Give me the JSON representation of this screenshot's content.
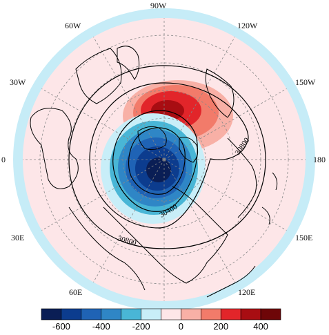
{
  "map": {
    "projection": "north polar stereographic",
    "longitude_labels": {
      "top": "90W",
      "upper_left": "60W",
      "upper_right": "120W",
      "left_upper": "30W",
      "right_upper": "150W",
      "left": "0",
      "right": "180",
      "left_lower": "30E",
      "right_lower": "150E",
      "bottom_left": "60E",
      "bottom_right": "120E"
    },
    "contour_labels": [
      "30800",
      "30400",
      "30800"
    ],
    "anomaly_features": [
      {
        "sign": "positive",
        "peak_value": 400,
        "color": "#c8141e"
      },
      {
        "sign": "negative",
        "peak_value": -600,
        "color": "#0a2b6e"
      }
    ],
    "background_color": "#fde6e8",
    "outer_ring_color": "#c6ecf7"
  },
  "colorbar": {
    "colors": [
      "#0a1e55",
      "#0c3c8e",
      "#1f63b5",
      "#2f86c6",
      "#49b6d6",
      "#c8eef8",
      "#fde6e8",
      "#f8b0a6",
      "#f27b6a",
      "#e2252a",
      "#a80d12",
      "#6e0608"
    ],
    "tick_labels": [
      "-600",
      "-400",
      "-200",
      "0",
      "200",
      "400"
    ]
  }
}
